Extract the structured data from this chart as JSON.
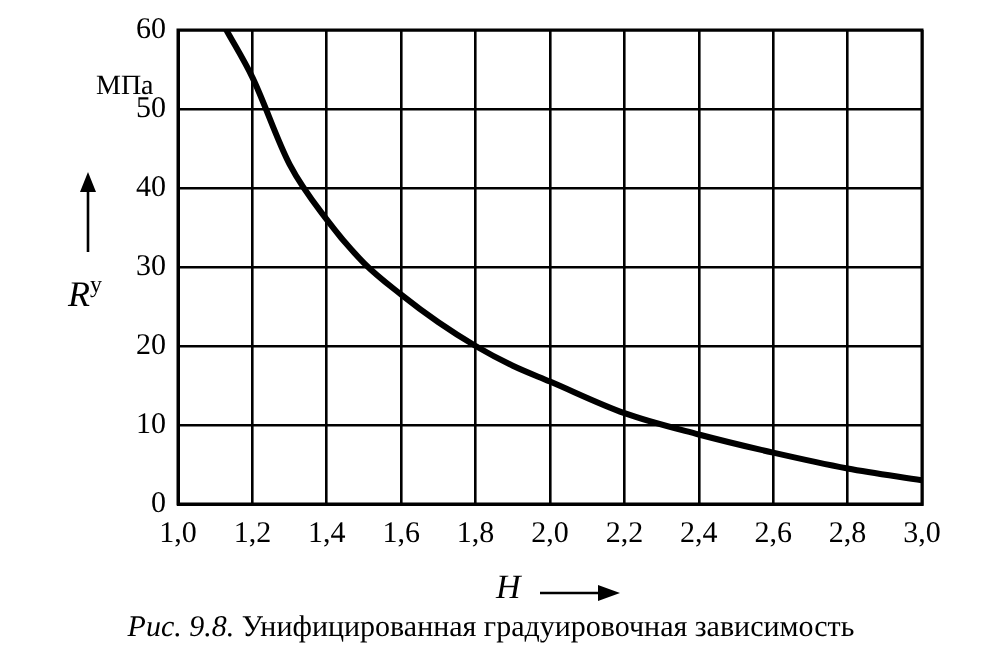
{
  "chart_data": {
    "type": "line",
    "xlabel": "H",
    "ylabel": "R$^{у}$",
    "annotations": [
      "МПа",
      "Рис. 9.8. Унифицированная градуировочная зависимость"
    ],
    "x": [
      1.13,
      1.2,
      1.3,
      1.4,
      1.5,
      1.6,
      1.7,
      1.8,
      1.9,
      2.0,
      2.2,
      2.4,
      2.6,
      2.8,
      3.0
    ],
    "series": [
      {
        "color": "#000000",
        "values": [
          60,
          54,
          43,
          36,
          30.5,
          26.5,
          23,
          20,
          17.5,
          15.5,
          11.5,
          8.8,
          6.5,
          4.5,
          3
        ]
      }
    ],
    "xlim": [
      1,
      3
    ],
    "xticks": [
      {
        "value": 1,
        "label": "1,0"
      },
      {
        "value": 1.2,
        "label": "1,2"
      },
      {
        "value": 1.4,
        "label": "1,4"
      },
      {
        "value": 1.6,
        "label": "1,6"
      },
      {
        "value": 1.8,
        "label": "1,8"
      },
      {
        "value": 2,
        "label": "2,0"
      },
      {
        "value": 2.2,
        "label": "2,2"
      },
      {
        "value": 2.4,
        "label": "2,4"
      },
      {
        "value": 2.6,
        "label": "2,6"
      },
      {
        "value": 2.8,
        "label": "2,8"
      },
      {
        "value": 3,
        "label": "3,0"
      }
    ],
    "ylim": [
      0,
      60
    ],
    "yticks": [
      0,
      10,
      20,
      30,
      40,
      50,
      60
    ],
    "grid": true,
    "legend": false,
    "marker": "none",
    "line_style": "solid"
  }
}
